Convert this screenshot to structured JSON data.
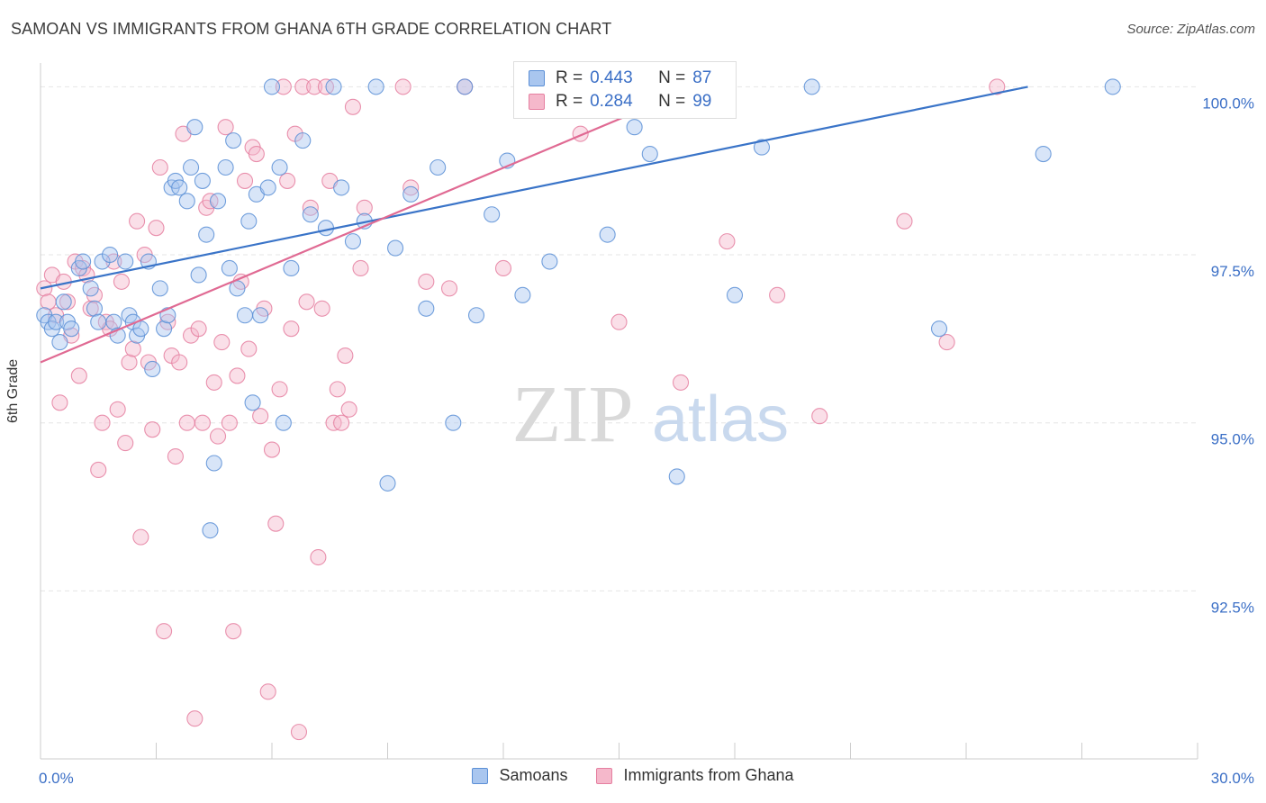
{
  "header": {
    "title": "SAMOAN VS IMMIGRANTS FROM GHANA 6TH GRADE CORRELATION CHART",
    "source": "Source: ZipAtlas.com"
  },
  "watermark": {
    "zip": "ZIP",
    "atlas": "atlas"
  },
  "legend_top": {
    "rows": [
      {
        "r_label": "R =",
        "r_value": "0.443",
        "n_label": "N =",
        "n_value": "87"
      },
      {
        "r_label": "R =",
        "r_value": "0.284",
        "n_label": "N =",
        "n_value": "99"
      }
    ]
  },
  "legend_bottom": {
    "items": [
      {
        "label": "Samoans"
      },
      {
        "label": "Immigrants from Ghana"
      }
    ]
  },
  "chart_data": {
    "type": "scatter",
    "title": "SAMOAN VS IMMIGRANTS FROM GHANA 6TH GRADE CORRELATION CHART",
    "xlabel": "",
    "ylabel": "6th Grade",
    "xlim": [
      0,
      30
    ],
    "ylim": [
      90.0,
      100.3
    ],
    "x_tick_labels": [
      "0.0%",
      "30.0%"
    ],
    "y_ticks": [
      92.5,
      95.0,
      97.5,
      100.0
    ],
    "y_tick_labels": [
      "92.5%",
      "95.0%",
      "97.5%",
      "100.0%"
    ],
    "grid": true,
    "legend_position": "bottom",
    "colors": {
      "samoans_fill": "#a9c6ef",
      "samoans_stroke": "#5b8fd6",
      "samoans_line": "#3a74c8",
      "ghana_fill": "#f5b8cb",
      "ghana_stroke": "#e57fa0",
      "ghana_line": "#e06a93",
      "accent_text": "#3b6fc6"
    },
    "series": [
      {
        "name": "Samoans",
        "r": 0.443,
        "n": 87,
        "trend": {
          "x": [
            0.0,
            25.6
          ],
          "y": [
            97.0,
            100.0
          ]
        },
        "points": [
          [
            0.1,
            96.6
          ],
          [
            0.2,
            96.5
          ],
          [
            0.3,
            96.4
          ],
          [
            0.4,
            96.5
          ],
          [
            0.5,
            96.2
          ],
          [
            0.6,
            96.8
          ],
          [
            0.7,
            96.5
          ],
          [
            0.8,
            96.4
          ],
          [
            1.0,
            97.3
          ],
          [
            1.1,
            97.4
          ],
          [
            1.3,
            97.0
          ],
          [
            1.4,
            96.7
          ],
          [
            1.5,
            96.5
          ],
          [
            1.6,
            97.4
          ],
          [
            1.8,
            97.5
          ],
          [
            1.9,
            96.5
          ],
          [
            2.0,
            96.3
          ],
          [
            2.2,
            97.4
          ],
          [
            2.3,
            96.6
          ],
          [
            2.4,
            96.5
          ],
          [
            2.5,
            96.3
          ],
          [
            2.6,
            96.4
          ],
          [
            2.8,
            97.4
          ],
          [
            2.9,
            95.8
          ],
          [
            3.1,
            97.0
          ],
          [
            3.2,
            96.4
          ],
          [
            3.3,
            96.6
          ],
          [
            3.4,
            98.5
          ],
          [
            3.5,
            98.6
          ],
          [
            3.6,
            98.5
          ],
          [
            3.8,
            98.3
          ],
          [
            3.9,
            98.8
          ],
          [
            4.0,
            99.4
          ],
          [
            4.1,
            97.2
          ],
          [
            4.2,
            98.6
          ],
          [
            4.3,
            97.8
          ],
          [
            4.4,
            93.4
          ],
          [
            4.5,
            94.4
          ],
          [
            4.6,
            98.3
          ],
          [
            4.8,
            98.8
          ],
          [
            4.9,
            97.3
          ],
          [
            5.0,
            99.2
          ],
          [
            5.1,
            97.0
          ],
          [
            5.3,
            96.6
          ],
          [
            5.4,
            98.0
          ],
          [
            5.5,
            95.3
          ],
          [
            5.6,
            98.4
          ],
          [
            5.7,
            96.6
          ],
          [
            5.9,
            98.5
          ],
          [
            6.0,
            100.0
          ],
          [
            6.2,
            98.8
          ],
          [
            6.3,
            95.0
          ],
          [
            6.5,
            97.3
          ],
          [
            6.8,
            99.2
          ],
          [
            7.0,
            98.1
          ],
          [
            7.4,
            97.9
          ],
          [
            7.6,
            100.0
          ],
          [
            7.8,
            98.5
          ],
          [
            8.1,
            97.7
          ],
          [
            8.4,
            98.0
          ],
          [
            8.7,
            100.0
          ],
          [
            9.0,
            94.1
          ],
          [
            9.2,
            97.6
          ],
          [
            9.6,
            98.4
          ],
          [
            10.0,
            96.7
          ],
          [
            10.3,
            98.8
          ],
          [
            10.7,
            95.0
          ],
          [
            11.0,
            100.0
          ],
          [
            11.3,
            96.6
          ],
          [
            11.7,
            98.1
          ],
          [
            12.1,
            98.9
          ],
          [
            12.5,
            96.9
          ],
          [
            13.2,
            97.4
          ],
          [
            14.2,
            100.0
          ],
          [
            14.4,
            99.9
          ],
          [
            14.7,
            97.8
          ],
          [
            14.9,
            100.0
          ],
          [
            15.4,
            99.4
          ],
          [
            15.8,
            99.0
          ],
          [
            16.5,
            94.2
          ],
          [
            17.1,
            100.0
          ],
          [
            18.0,
            96.9
          ],
          [
            18.7,
            99.1
          ],
          [
            20.0,
            100.0
          ],
          [
            23.3,
            96.4
          ],
          [
            26.0,
            99.0
          ],
          [
            27.8,
            100.0
          ]
        ]
      },
      {
        "name": "Immigrants from Ghana",
        "r": 0.284,
        "n": 99,
        "trend": {
          "x": [
            0.0,
            17.0
          ],
          "y": [
            95.9,
            100.0
          ]
        },
        "points": [
          [
            0.1,
            97.0
          ],
          [
            0.2,
            96.8
          ],
          [
            0.3,
            97.2
          ],
          [
            0.4,
            96.6
          ],
          [
            0.5,
            95.3
          ],
          [
            0.6,
            97.1
          ],
          [
            0.7,
            96.8
          ],
          [
            0.8,
            96.3
          ],
          [
            0.9,
            97.4
          ],
          [
            1.0,
            95.7
          ],
          [
            1.1,
            97.3
          ],
          [
            1.2,
            97.2
          ],
          [
            1.3,
            96.7
          ],
          [
            1.4,
            96.9
          ],
          [
            1.5,
            94.3
          ],
          [
            1.6,
            95.0
          ],
          [
            1.7,
            96.5
          ],
          [
            1.8,
            96.4
          ],
          [
            1.9,
            97.4
          ],
          [
            2.0,
            95.2
          ],
          [
            2.1,
            97.1
          ],
          [
            2.2,
            94.7
          ],
          [
            2.3,
            95.9
          ],
          [
            2.4,
            96.1
          ],
          [
            2.5,
            98.0
          ],
          [
            2.6,
            93.3
          ],
          [
            2.7,
            97.5
          ],
          [
            2.8,
            95.9
          ],
          [
            2.9,
            94.9
          ],
          [
            3.0,
            97.9
          ],
          [
            3.1,
            98.8
          ],
          [
            3.2,
            91.9
          ],
          [
            3.3,
            96.5
          ],
          [
            3.4,
            96.0
          ],
          [
            3.5,
            94.5
          ],
          [
            3.6,
            95.9
          ],
          [
            3.7,
            99.3
          ],
          [
            3.8,
            95.0
          ],
          [
            3.9,
            96.3
          ],
          [
            4.0,
            90.6
          ],
          [
            4.1,
            96.4
          ],
          [
            4.2,
            95.0
          ],
          [
            4.3,
            98.2
          ],
          [
            4.4,
            98.3
          ],
          [
            4.5,
            95.6
          ],
          [
            4.6,
            94.8
          ],
          [
            4.7,
            96.2
          ],
          [
            4.8,
            99.4
          ],
          [
            4.9,
            95.0
          ],
          [
            5.0,
            91.9
          ],
          [
            5.1,
            95.7
          ],
          [
            5.2,
            97.1
          ],
          [
            5.3,
            98.6
          ],
          [
            5.4,
            96.1
          ],
          [
            5.5,
            99.1
          ],
          [
            5.6,
            99.0
          ],
          [
            5.7,
            95.1
          ],
          [
            5.8,
            96.7
          ],
          [
            5.9,
            91.0
          ],
          [
            6.0,
            94.6
          ],
          [
            6.1,
            93.5
          ],
          [
            6.2,
            95.5
          ],
          [
            6.3,
            100.0
          ],
          [
            6.4,
            98.6
          ],
          [
            6.5,
            96.4
          ],
          [
            6.6,
            99.3
          ],
          [
            6.7,
            90.4
          ],
          [
            6.8,
            100.0
          ],
          [
            6.9,
            96.8
          ],
          [
            7.0,
            98.2
          ],
          [
            7.1,
            100.0
          ],
          [
            7.2,
            93.0
          ],
          [
            7.3,
            96.7
          ],
          [
            7.4,
            100.0
          ],
          [
            7.5,
            98.6
          ],
          [
            7.6,
            95.0
          ],
          [
            7.7,
            95.5
          ],
          [
            7.8,
            95.0
          ],
          [
            7.9,
            96.0
          ],
          [
            8.0,
            95.2
          ],
          [
            8.1,
            99.7
          ],
          [
            8.3,
            97.3
          ],
          [
            8.4,
            98.2
          ],
          [
            9.4,
            100.0
          ],
          [
            9.6,
            98.5
          ],
          [
            10.0,
            97.1
          ],
          [
            10.6,
            97.0
          ],
          [
            11.0,
            100.0
          ],
          [
            12.0,
            97.3
          ],
          [
            12.9,
            100.0
          ],
          [
            14.0,
            99.3
          ],
          [
            15.0,
            96.5
          ],
          [
            16.6,
            95.6
          ],
          [
            17.8,
            97.7
          ],
          [
            19.1,
            96.9
          ],
          [
            20.2,
            95.1
          ],
          [
            22.4,
            98.0
          ],
          [
            23.5,
            96.2
          ],
          [
            24.8,
            100.0
          ]
        ]
      }
    ]
  }
}
